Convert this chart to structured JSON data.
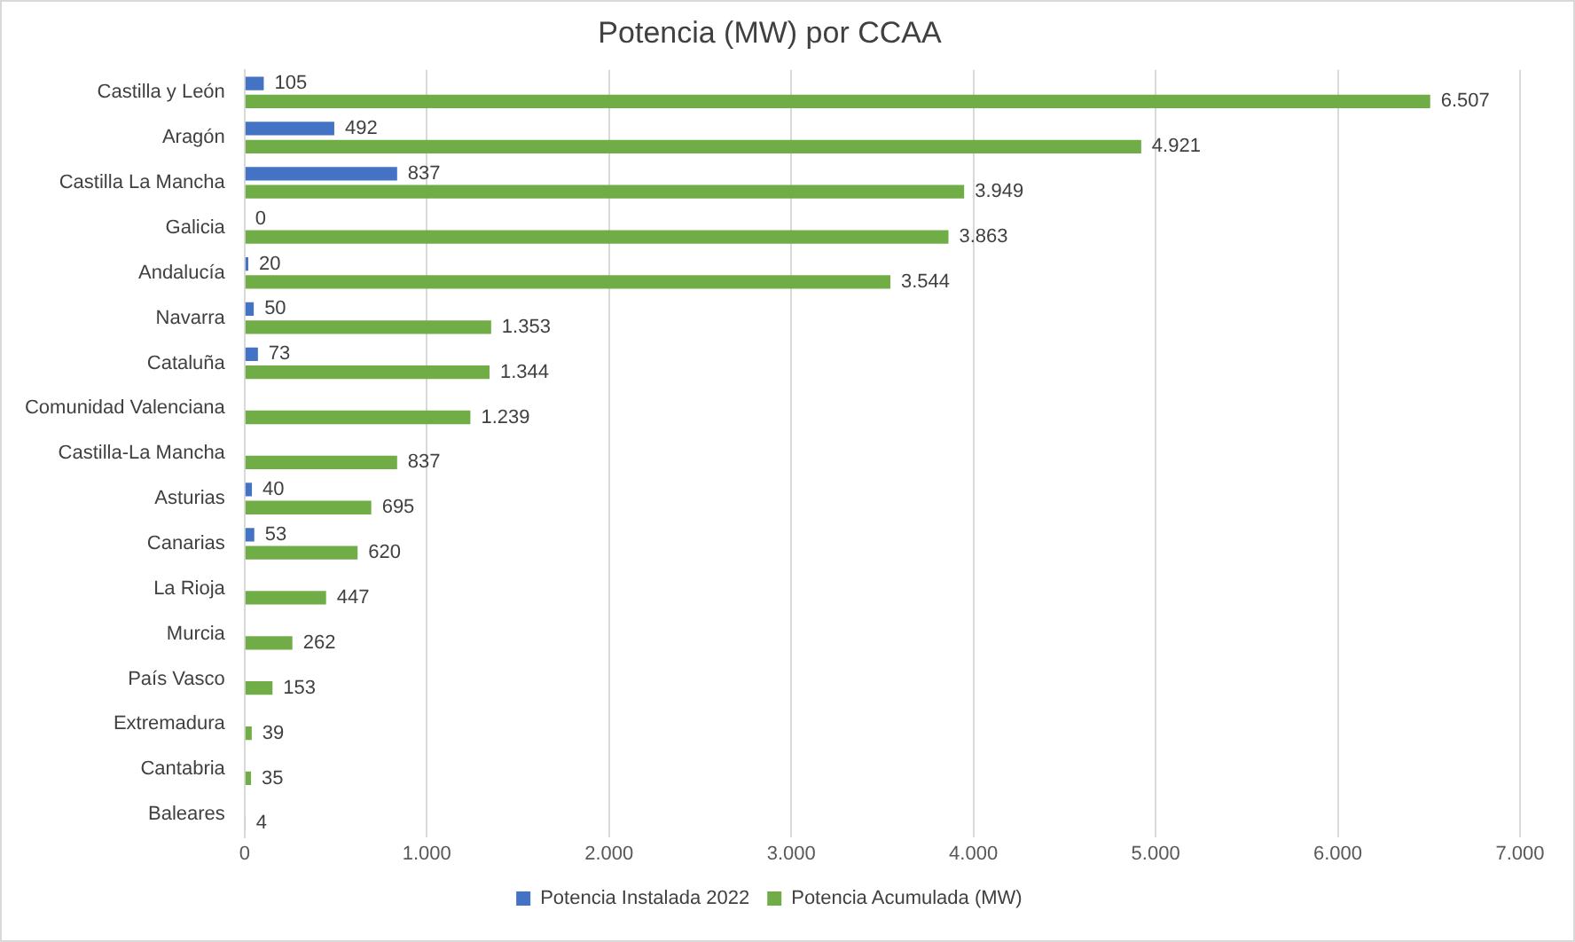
{
  "chart_data": {
    "type": "bar",
    "orientation": "horizontal",
    "title": "Potencia (MW) por CCAA",
    "categories": [
      "Castilla y León",
      "Aragón",
      "Castilla La Mancha",
      "Galicia",
      "Andalucía",
      "Navarra",
      "Cataluña",
      "Comunidad Valenciana",
      "Castilla-La Mancha",
      "Asturias",
      "Canarias",
      "La Rioja",
      "Murcia",
      "País Vasco",
      "Extremadura",
      "Cantabria",
      "Baleares"
    ],
    "series": [
      {
        "name": "Potencia Instalada 2022",
        "color": "#4472c4",
        "values": [
          105,
          492,
          837,
          0,
          20,
          50,
          73,
          null,
          null,
          40,
          53,
          null,
          null,
          null,
          null,
          null,
          null
        ],
        "value_labels": [
          "105",
          "492",
          "837",
          "0",
          "20",
          "50",
          "73",
          null,
          null,
          "40",
          "53",
          null,
          null,
          null,
          null,
          null,
          null
        ]
      },
      {
        "name": "Potencia Acumulada (MW)",
        "color": "#70ad47",
        "values": [
          6507,
          4921,
          3949,
          3863,
          3544,
          1353,
          1344,
          1239,
          837,
          695,
          620,
          447,
          262,
          153,
          39,
          35,
          4
        ],
        "value_labels": [
          "6.507",
          "4.921",
          "3.949",
          "3.863",
          "3.544",
          "1.353",
          "1.344",
          "1.239",
          "837",
          "695",
          "620",
          "447",
          "262",
          "153",
          "39",
          "35",
          "4"
        ]
      }
    ],
    "xlim": [
      0,
      7000
    ],
    "xticks": [
      0,
      {
        "value": 1000,
        "label": "1.000"
      },
      {
        "value": 2000,
        "label": "2.000"
      },
      {
        "value": 3000,
        "label": "3.000"
      },
      {
        "value": 4000,
        "label": "4.000"
      },
      {
        "value": 5000,
        "label": "5.000"
      },
      {
        "value": 6000,
        "label": "6.000"
      },
      {
        "value": 7000,
        "label": "7.000"
      }
    ],
    "grid": "x",
    "legend": "bottom"
  }
}
